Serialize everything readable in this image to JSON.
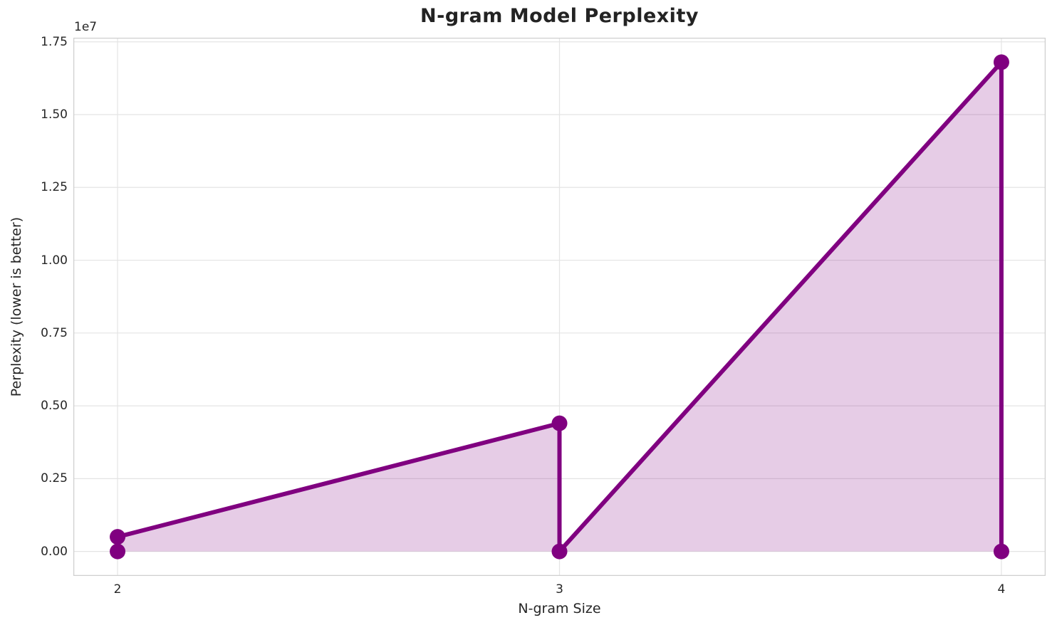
{
  "chart_data": {
    "type": "line",
    "title": "N-gram Model Perplexity",
    "xlabel": "N-gram Size",
    "ylabel": "Perplexity (lower is better)",
    "offset_text": "1e7",
    "x": [
      2,
      2,
      3,
      3,
      4,
      4
    ],
    "y": [
      0,
      500000,
      4400000,
      0,
      16800000,
      0
    ],
    "xticks": [
      2,
      3,
      4
    ],
    "xtick_labels": [
      "2",
      "3",
      "4"
    ],
    "yticks": [
      0,
      2500000,
      5000000,
      7500000,
      10000000,
      12500000,
      15000000,
      17500000
    ],
    "ytick_labels": [
      "0.00",
      "0.25",
      "0.50",
      "0.75",
      "1.00",
      "1.25",
      "1.50",
      "1.75"
    ],
    "xlim": [
      1.9,
      4.1
    ],
    "ylim": [
      -840000,
      17640000
    ],
    "grid": true,
    "legend_position": "none",
    "line_color": "#800080",
    "fill_color": "rgba(128,0,128,0.2)",
    "marker": "o",
    "marker_radius": 11,
    "line_width": 6,
    "grid_color": "#e4e4e4",
    "spine_color": "#cfcfcf",
    "fill_baseline": 0
  }
}
